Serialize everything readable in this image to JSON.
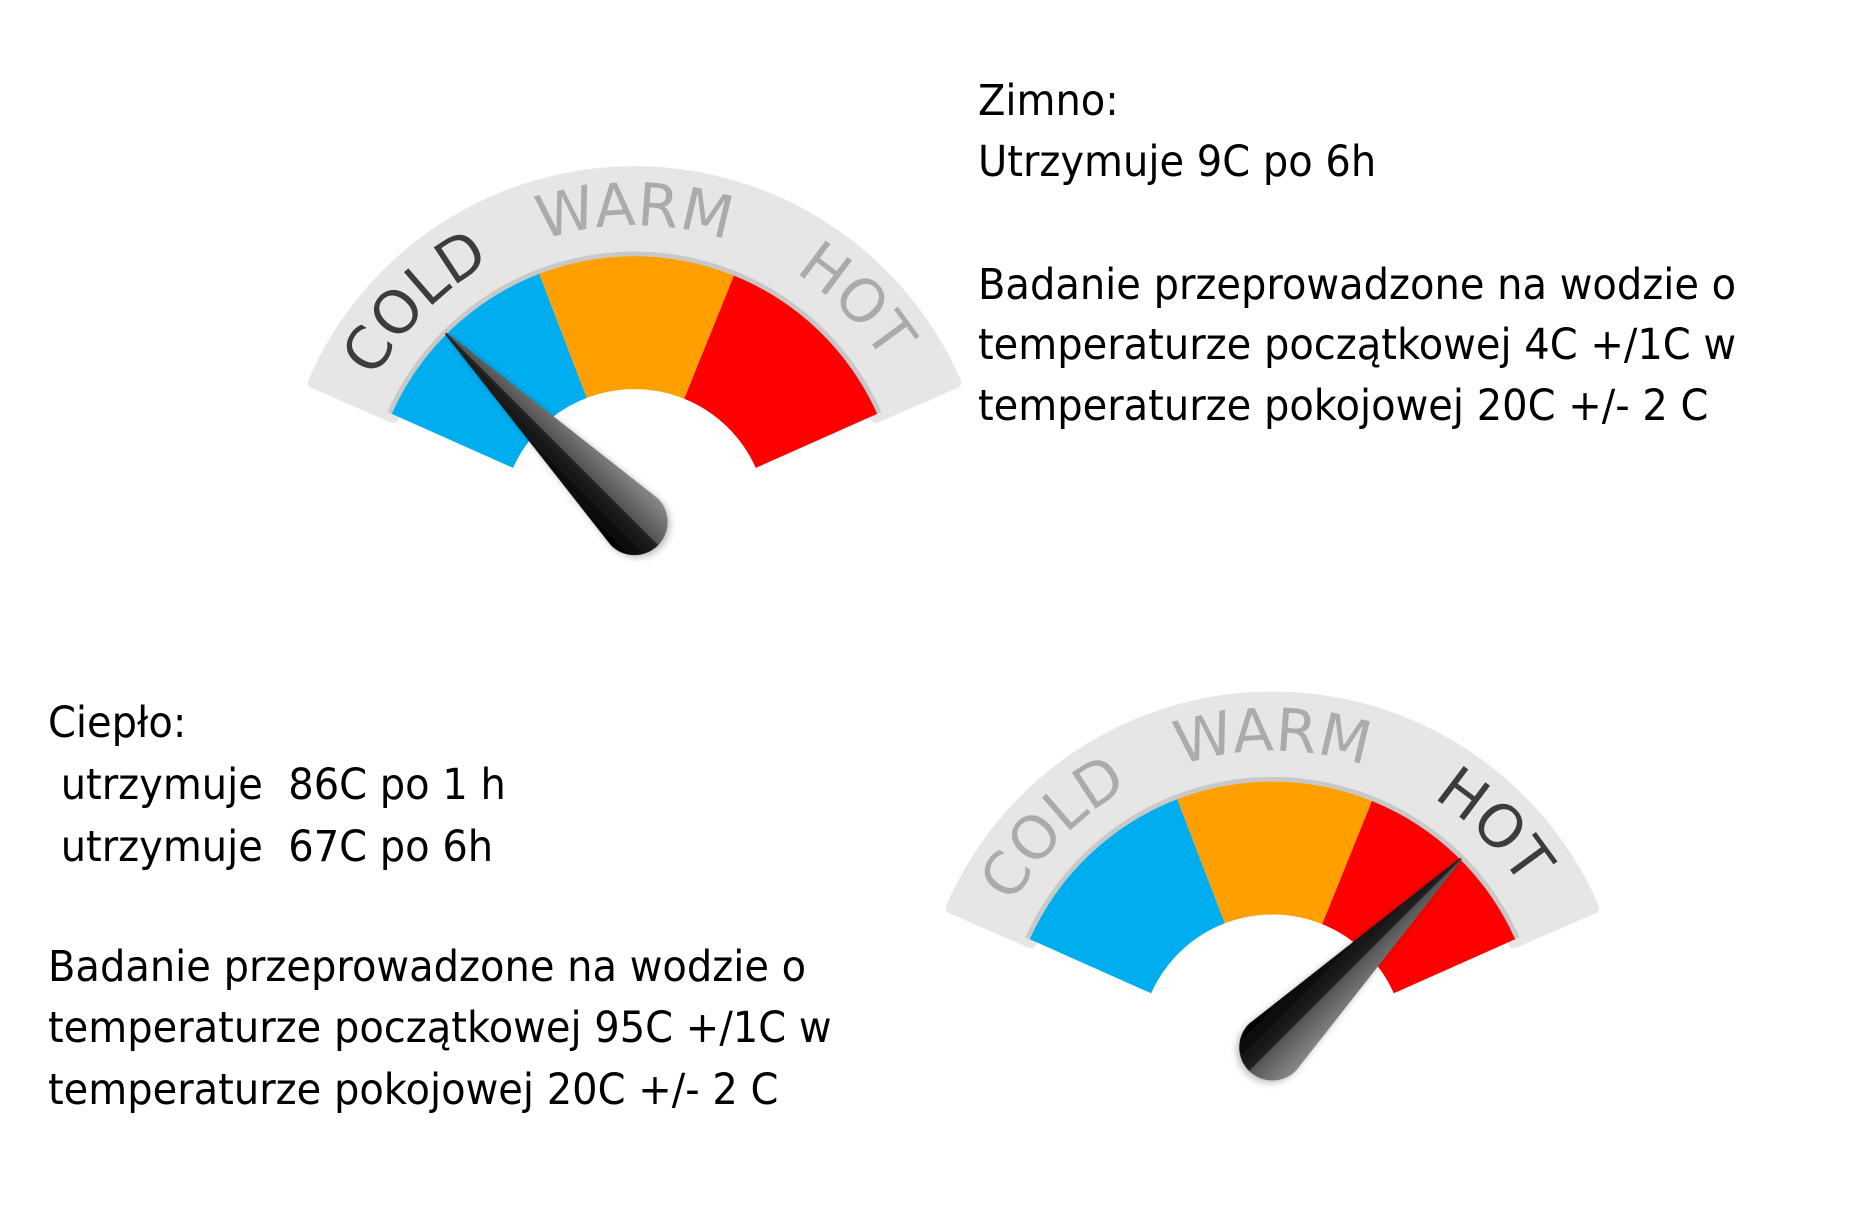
{
  "cold_section": {
    "title": "Zimno:",
    "result": "Utrzymuje 9C po 6h",
    "description": [
      "Badanie przeprowadzone na wodzie o",
      "temperaturze początkowej 4C +/1C w",
      "temperaturze pokojowej 20C +/- 2 C"
    ]
  },
  "warm_section": {
    "title": "Ciepło:",
    "results": [
      " utrzymuje  86C po 1 h",
      " utrzymuje  67C po 6h"
    ],
    "description": [
      "Badanie przeprowadzone na wodzie o",
      "temperaturze początkowej 95C +/1C w",
      "temperaturze pokojowej 20C +/- 2 C"
    ]
  },
  "gauges": [
    {
      "labels": [
        "COLD",
        "WARM",
        "HOT"
      ],
      "needle_position": "COLD",
      "highlighted_label": "COLD"
    },
    {
      "labels": [
        "COLD",
        "WARM",
        "HOT"
      ],
      "needle_position": "HOT",
      "highlighted_label": "HOT"
    }
  ],
  "colors": {
    "cold": "#00aef0",
    "warm": "#ffa000",
    "hot": "#ff0000",
    "dial_band": "#e6e6e6",
    "label_active": "#3c3c3c",
    "label_inactive": "#ababab",
    "needle": "#111111"
  }
}
